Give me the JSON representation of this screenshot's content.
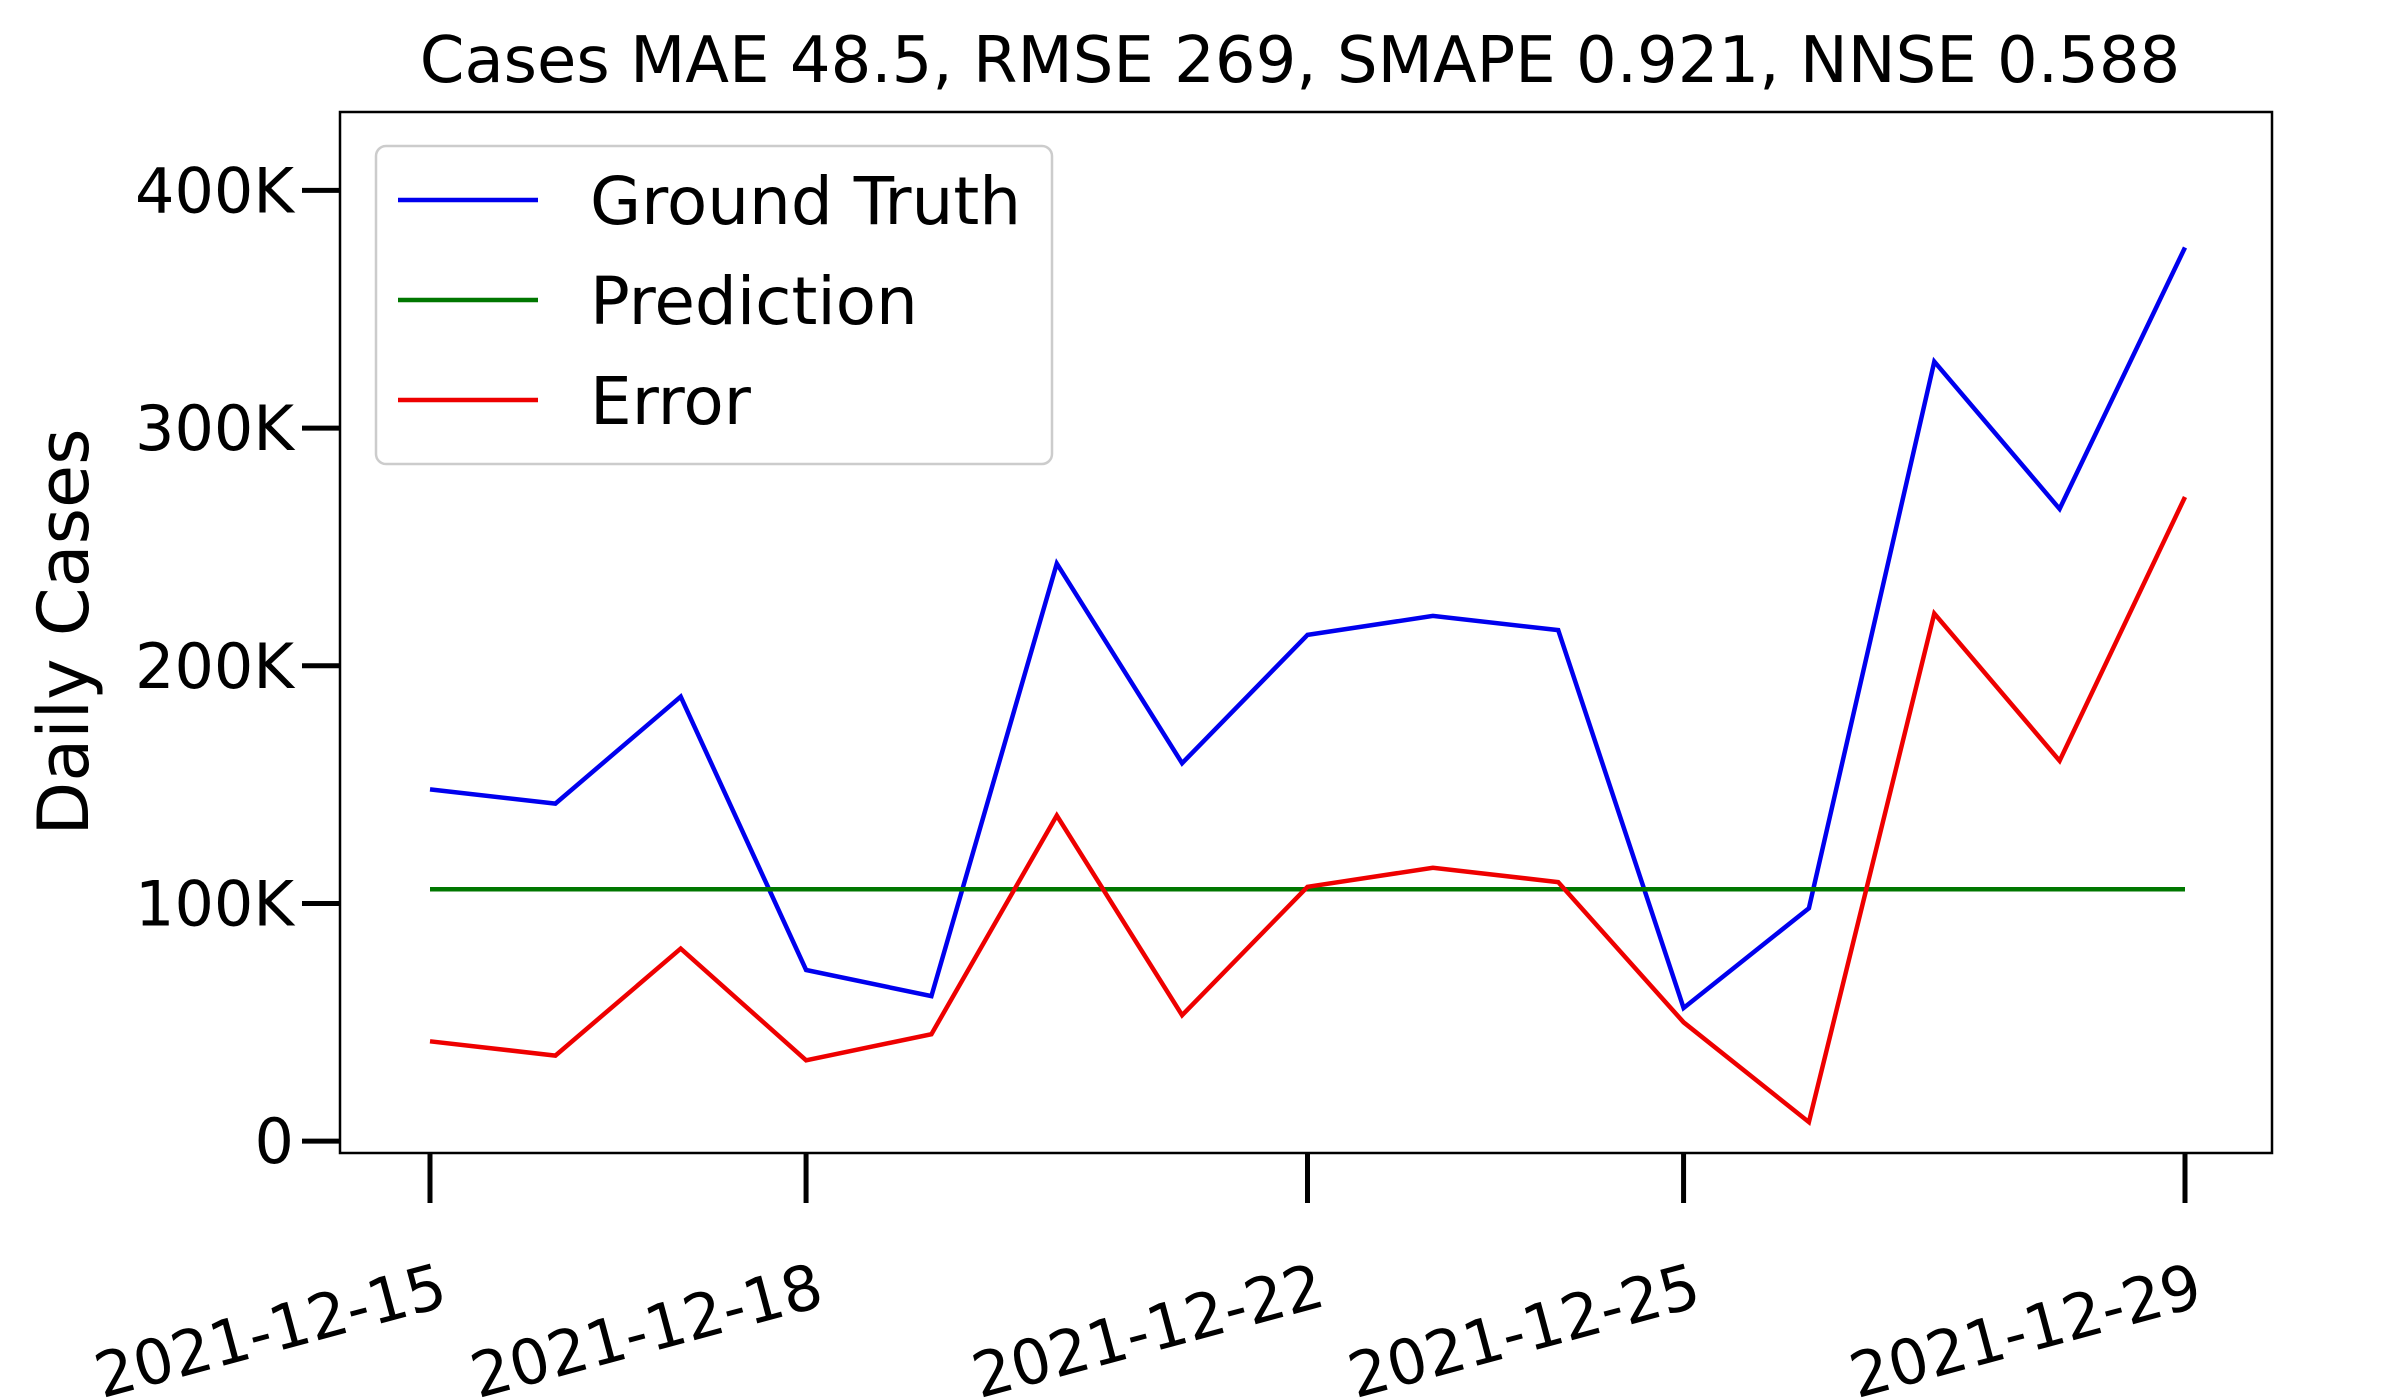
{
  "chart_data": {
    "type": "line",
    "title": "Cases MAE 48.5, RMSE 269, SMAPE 0.921, NNSE 0.588",
    "xlabel": "",
    "ylabel": "Daily Cases",
    "x": [
      "2021-12-15",
      "2021-12-16",
      "2021-12-17",
      "2021-12-18",
      "2021-12-19",
      "2021-12-20",
      "2021-12-21",
      "2021-12-22",
      "2021-12-23",
      "2021-12-24",
      "2021-12-25",
      "2021-12-26",
      "2021-12-27",
      "2021-12-28",
      "2021-12-29"
    ],
    "x_ticks": [
      "2021-12-15",
      "2021-12-18",
      "2021-12-22",
      "2021-12-25",
      "2021-12-29"
    ],
    "x_tick_labels": [
      "2021-12-15",
      "2021-12-18",
      "2021-12-22",
      "2021-12-25",
      "2021-12-29"
    ],
    "y_ticks": [
      0,
      100000,
      200000,
      300000,
      400000
    ],
    "y_tick_labels": [
      "0",
      "100K",
      "200K",
      "300K",
      "400K"
    ],
    "ylim": [
      -5000,
      433000
    ],
    "grid": false,
    "legend_position": "top-left",
    "series": [
      {
        "name": "Ground Truth",
        "color": "#0000ee",
        "values": [
          148000,
          142000,
          187000,
          72000,
          61000,
          243000,
          159000,
          213000,
          221000,
          215000,
          56000,
          98000,
          328000,
          266000,
          376000
        ]
      },
      {
        "name": "Prediction",
        "color": "#007700",
        "values": [
          106000,
          106000,
          106000,
          106000,
          106000,
          106000,
          106000,
          106000,
          106000,
          106000,
          106000,
          106000,
          106000,
          106000,
          106000
        ]
      },
      {
        "name": "Error",
        "color": "#ee0000",
        "values": [
          42000,
          36000,
          81000,
          34000,
          45000,
          137000,
          53000,
          107000,
          115000,
          109000,
          50000,
          8000,
          222000,
          160000,
          271000
        ]
      }
    ]
  }
}
